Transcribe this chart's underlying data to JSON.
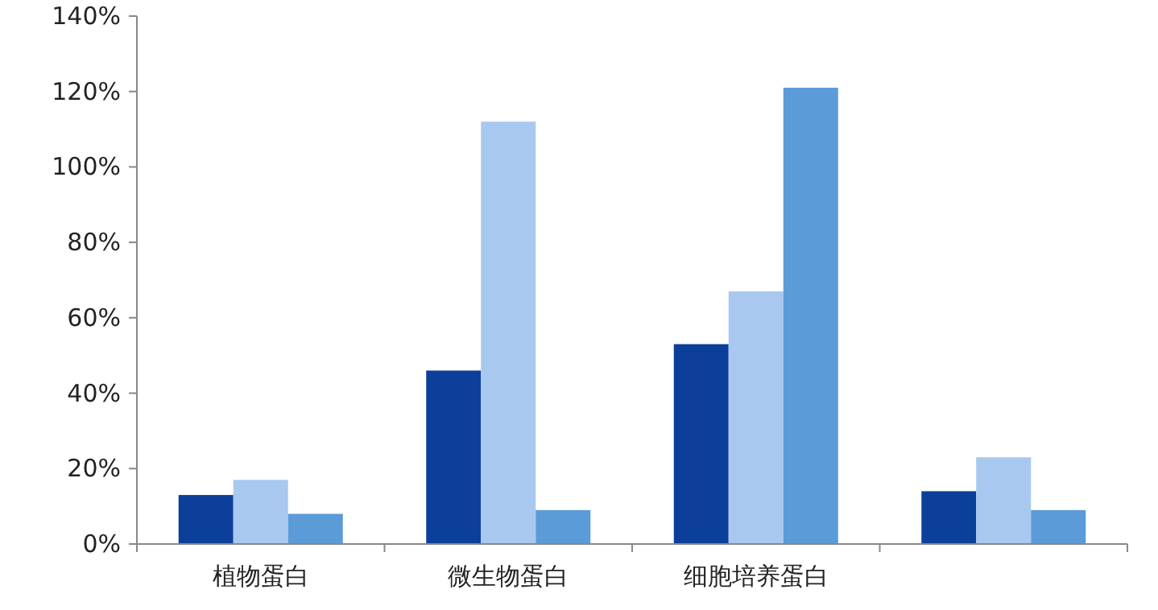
{
  "chart_data": {
    "type": "bar",
    "categories": [
      "植物蛋白",
      "微生物蛋白",
      "细胞培养蛋白",
      null
    ],
    "series": [
      {
        "color": "#0b3f99",
        "values": [
          13,
          46,
          53,
          14
        ]
      },
      {
        "color": "#a9c8f0",
        "values": [
          17,
          112,
          67,
          23
        ]
      },
      {
        "color": "#5b9bd8",
        "values": [
          8,
          9,
          121,
          9
        ]
      }
    ],
    "ylim": [
      0,
      140
    ],
    "yticks": [
      {
        "value": 0,
        "label": "0%"
      },
      {
        "value": 20,
        "label": "20%"
      },
      {
        "value": 40,
        "label": "40%"
      },
      {
        "value": 60,
        "label": "60%"
      },
      {
        "value": 80,
        "label": "80%"
      },
      {
        "value": 100,
        "label": "100%"
      },
      {
        "value": 120,
        "label": "120%"
      },
      {
        "value": 140,
        "label": "140%"
      }
    ],
    "grid": false
  }
}
